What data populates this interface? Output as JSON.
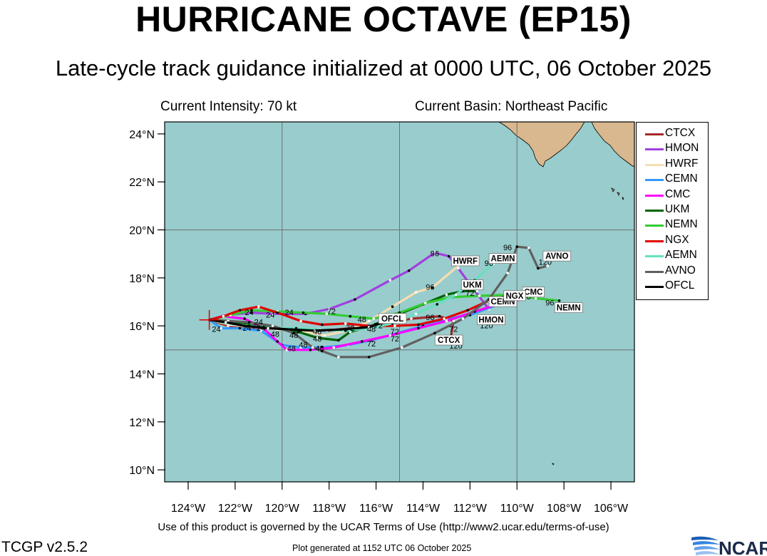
{
  "header": {
    "title": "HURRICANE OCTAVE (EP15)",
    "subtitle": "Late-cycle track guidance initialized at 0000 UTC, 06 October 2025",
    "intensity": "Current Intensity: 70 kt",
    "basin": "Current Basin: Northeast Pacific"
  },
  "footer": {
    "terms": "Use of this product is governed by the UCAR Terms of Use (http://www2.ucar.edu/terms-of-use)",
    "version": "TCGP v2.5.2",
    "generated": "Plot generated at 1152 UTC   06 October 2025",
    "logo_text": "NCAR"
  },
  "map": {
    "ocean_color": "#99cccc",
    "land_color": "#d9b88f",
    "lon_range": [
      -125,
      -105
    ],
    "lat_range": [
      9.5,
      24.5
    ],
    "lon_ticks": [
      {
        "v": -124,
        "label": "124°W"
      },
      {
        "v": -122,
        "label": "122°W"
      },
      {
        "v": -120,
        "label": "120°W"
      },
      {
        "v": -118,
        "label": "118°W"
      },
      {
        "v": -116,
        "label": "116°W"
      },
      {
        "v": -114,
        "label": "114°W"
      },
      {
        "v": -112,
        "label": "112°W"
      },
      {
        "v": -110,
        "label": "110°W"
      },
      {
        "v": -108,
        "label": "108°W"
      },
      {
        "v": -106,
        "label": "106°W"
      }
    ],
    "lat_ticks": [
      {
        "v": 10,
        "label": "10°N"
      },
      {
        "v": 12,
        "label": "12°N"
      },
      {
        "v": 14,
        "label": "14°N"
      },
      {
        "v": 16,
        "label": "16°N"
      },
      {
        "v": 18,
        "label": "18°N"
      },
      {
        "v": 20,
        "label": "20°N"
      },
      {
        "v": 22,
        "label": "22°N"
      },
      {
        "v": 24,
        "label": "24°N"
      }
    ],
    "grid_lon": [
      -125,
      -120,
      -115,
      -110
    ],
    "grid_lat": [
      15,
      20
    ],
    "current_position": {
      "lon": -123.1,
      "lat": 16.25
    }
  },
  "models": [
    {
      "name": "CTCX",
      "color": "#a52a2a",
      "track": [
        [
          -123.1,
          16.25
        ],
        [
          -122.3,
          16.0
        ],
        [
          -121.5,
          15.9
        ],
        [
          -120.5,
          15.9
        ],
        [
          -119.2,
          15.85
        ],
        [
          -118.1,
          15.8
        ],
        [
          -116.2,
          16.0
        ],
        [
          -114.5,
          16.3
        ],
        [
          -113.3,
          16.4
        ],
        [
          -112.7,
          16.2
        ],
        [
          -112.8,
          15.6
        ]
      ],
      "end_label": "CTCX",
      "end_label_pos": [
        -112.9,
        15.35
      ]
    },
    {
      "name": "HMON",
      "color": "#a040e0",
      "track": [
        [
          -123.1,
          16.25
        ],
        [
          -122.4,
          16.45
        ],
        [
          -121.3,
          16.55
        ],
        [
          -120.4,
          16.5
        ],
        [
          -119.0,
          16.5
        ],
        [
          -118.0,
          16.7
        ],
        [
          -116.9,
          17.1
        ],
        [
          -115.4,
          17.9
        ],
        [
          -114.6,
          18.3
        ],
        [
          -113.5,
          19.05
        ],
        [
          -112.9,
          18.9
        ],
        [
          -112.5,
          18.4
        ],
        [
          -111.9,
          17.6
        ],
        [
          -111.2,
          16.7
        ]
      ],
      "end_label": "HMON",
      "end_label_pos": [
        -111.1,
        16.2
      ]
    },
    {
      "name": "HWRF",
      "color": "#f5deb3",
      "track": [
        [
          -123.1,
          16.25
        ],
        [
          -122.2,
          16.05
        ],
        [
          -121.2,
          15.95
        ],
        [
          -120.2,
          15.85
        ],
        [
          -119.2,
          15.8
        ],
        [
          -118.2,
          15.6
        ],
        [
          -117.2,
          15.8
        ],
        [
          -116.3,
          16.2
        ],
        [
          -115.3,
          16.8
        ],
        [
          -114.3,
          17.4
        ],
        [
          -113.6,
          17.6
        ],
        [
          -112.5,
          18.5
        ]
      ],
      "end_label": "HWRF",
      "end_label_pos": [
        -112.2,
        18.65
      ]
    },
    {
      "name": "CEMN",
      "color": "#3399ff",
      "track": [
        [
          -123.1,
          16.25
        ],
        [
          -122.6,
          15.9
        ],
        [
          -121.8,
          15.9
        ],
        [
          -120.9,
          15.8
        ],
        [
          -120.0,
          15.2
        ],
        [
          -119.2,
          15.1
        ],
        [
          -118.3,
          15.1
        ],
        [
          -117.2,
          15.2
        ],
        [
          -116.2,
          15.4
        ],
        [
          -115.1,
          15.7
        ],
        [
          -114.0,
          16.0
        ],
        [
          -113.0,
          16.3
        ],
        [
          -112.0,
          16.45
        ],
        [
          -110.9,
          16.85
        ]
      ],
      "end_label": "CEMN",
      "end_label_pos": [
        -110.6,
        16.95
      ]
    },
    {
      "name": "CMC",
      "color": "#ff00ff",
      "track": [
        [
          -123.1,
          16.25
        ],
        [
          -122.5,
          16.4
        ],
        [
          -121.6,
          16.3
        ],
        [
          -120.8,
          15.9
        ],
        [
          -120.2,
          15.35
        ],
        [
          -119.8,
          15.0
        ],
        [
          -118.8,
          15.0
        ],
        [
          -117.8,
          15.1
        ],
        [
          -116.6,
          15.35
        ],
        [
          -115.4,
          15.6
        ],
        [
          -114.2,
          15.9
        ],
        [
          -113.0,
          16.2
        ],
        [
          -111.8,
          16.6
        ],
        [
          -110.8,
          16.9
        ],
        [
          -109.8,
          17.1
        ]
      ],
      "end_label": "CMC",
      "end_label_pos": [
        -109.3,
        17.35
      ]
    },
    {
      "name": "UKM",
      "color": "#006400",
      "track": [
        [
          -123.1,
          16.25
        ],
        [
          -122.2,
          16.2
        ],
        [
          -121.2,
          16.0
        ],
        [
          -120.3,
          15.9
        ],
        [
          -119.3,
          15.75
        ],
        [
          -118.5,
          15.5
        ],
        [
          -117.6,
          15.4
        ],
        [
          -117.1,
          15.75
        ],
        [
          -116.2,
          16.0
        ],
        [
          -115.0,
          16.5
        ],
        [
          -114.0,
          16.9
        ],
        [
          -113.0,
          17.3
        ],
        [
          -112.3,
          17.45
        ],
        [
          -111.7,
          17.45
        ]
      ],
      "end_label": "UKM",
      "end_label_pos": [
        -111.9,
        17.65
      ]
    },
    {
      "name": "NEMN",
      "color": "#33cc33",
      "track": [
        [
          -123.1,
          16.25
        ],
        [
          -122.2,
          16.45
        ],
        [
          -121.3,
          16.65
        ],
        [
          -120.2,
          16.6
        ],
        [
          -119.1,
          16.55
        ],
        [
          -118.1,
          16.5
        ],
        [
          -117.1,
          16.4
        ],
        [
          -116.1,
          16.3
        ],
        [
          -115.0,
          16.55
        ],
        [
          -113.9,
          16.95
        ],
        [
          -112.8,
          17.2
        ],
        [
          -111.6,
          17.25
        ],
        [
          -110.3,
          17.3
        ],
        [
          -109.2,
          17.15
        ],
        [
          -108.2,
          17.05
        ]
      ],
      "end_label": "NEMN",
      "end_label_pos": [
        -107.8,
        16.7
      ]
    },
    {
      "name": "NGX",
      "color": "#e00000",
      "track": [
        [
          -123.1,
          16.25
        ],
        [
          -122.5,
          16.4
        ],
        [
          -121.8,
          16.65
        ],
        [
          -121.0,
          16.8
        ],
        [
          -120.2,
          16.55
        ],
        [
          -119.2,
          16.2
        ],
        [
          -118.3,
          16.05
        ],
        [
          -117.3,
          16.1
        ],
        [
          -116.3,
          16.0
        ],
        [
          -115.2,
          16.0
        ],
        [
          -114.2,
          16.05
        ],
        [
          -113.1,
          16.3
        ],
        [
          -112.1,
          16.65
        ],
        [
          -111.2,
          17.05
        ],
        [
          -110.6,
          17.2
        ]
      ],
      "end_label": "NGX",
      "end_label_pos": [
        -110.1,
        17.2
      ]
    },
    {
      "name": "AEMN",
      "color": "#66e0c0",
      "track": [
        [
          -123.1,
          16.25
        ],
        [
          -122.3,
          16.1
        ],
        [
          -121.4,
          16.0
        ],
        [
          -120.5,
          15.9
        ],
        [
          -119.4,
          15.9
        ],
        [
          -118.4,
          15.85
        ],
        [
          -117.3,
          15.8
        ],
        [
          -116.3,
          15.9
        ],
        [
          -115.3,
          16.1
        ],
        [
          -114.3,
          16.5
        ],
        [
          -113.4,
          16.9
        ],
        [
          -112.6,
          17.3
        ],
        [
          -111.8,
          17.9
        ],
        [
          -111.0,
          18.6
        ]
      ],
      "end_label": "AEMN",
      "end_label_pos": [
        -110.6,
        18.75
      ]
    },
    {
      "name": "AVNO",
      "color": "#606060",
      "track": [
        [
          -123.1,
          16.25
        ],
        [
          -122.3,
          16.2
        ],
        [
          -121.4,
          16.15
        ],
        [
          -120.4,
          16.0
        ],
        [
          -119.5,
          15.7
        ],
        [
          -118.7,
          15.1
        ],
        [
          -118.3,
          14.95
        ],
        [
          -117.6,
          14.7
        ],
        [
          -116.3,
          14.7
        ],
        [
          -114.9,
          15.1
        ],
        [
          -113.5,
          15.7
        ],
        [
          -112.3,
          16.3
        ],
        [
          -111.2,
          17.1
        ],
        [
          -110.4,
          18.2
        ],
        [
          -110.0,
          19.3
        ],
        [
          -109.5,
          19.25
        ],
        [
          -109.1,
          18.4
        ],
        [
          -108.7,
          18.5
        ]
      ],
      "end_label": "AVNO",
      "end_label_pos": [
        -108.3,
        18.85
      ]
    },
    {
      "name": "OFCL",
      "color": "#000000",
      "track": [
        [
          -123.1,
          16.25
        ],
        [
          -122.4,
          16.15
        ],
        [
          -121.6,
          16.0
        ],
        [
          -120.6,
          15.9
        ],
        [
          -119.6,
          15.85
        ],
        [
          -118.6,
          15.8
        ],
        [
          -117.5,
          15.85
        ],
        [
          -116.3,
          15.95
        ],
        [
          -115.4,
          16.25
        ]
      ],
      "end_label": "OFCL",
      "end_label_pos": [
        -115.3,
        16.25
      ]
    }
  ],
  "hour_labels": [
    {
      "t": "24",
      "lon": -121.4,
      "lat": 16.45
    },
    {
      "t": "24",
      "lon": -120.5,
      "lat": 16.35
    },
    {
      "t": "24",
      "lon": -119.7,
      "lat": 16.45
    },
    {
      "t": "24",
      "lon": -121.0,
      "lat": 16.05
    },
    {
      "t": "24",
      "lon": -120.9,
      "lat": 15.8
    },
    {
      "t": "24",
      "lon": -121.5,
      "lat": 15.8
    },
    {
      "t": "24",
      "lon": -122.8,
      "lat": 15.75
    },
    {
      "t": "48",
      "lon": -120.3,
      "lat": 15.55
    },
    {
      "t": "48",
      "lon": -119.5,
      "lat": 15.5
    },
    {
      "t": "48",
      "lon": -119.1,
      "lat": 15.1
    },
    {
      "t": "48",
      "lon": -119.6,
      "lat": 14.95
    },
    {
      "t": "48",
      "lon": -118.5,
      "lat": 15.35
    },
    {
      "t": "48",
      "lon": -118.5,
      "lat": 15.65
    },
    {
      "t": "48",
      "lon": -118.4,
      "lat": 14.95
    },
    {
      "t": "48",
      "lon": -116.6,
      "lat": 16.15
    },
    {
      "t": "48",
      "lon": -116.2,
      "lat": 15.75
    },
    {
      "t": "72",
      "lon": -117.9,
      "lat": 16.5
    },
    {
      "t": "72",
      "lon": -117.1,
      "lat": 15.8
    },
    {
      "t": "72",
      "lon": -115.9,
      "lat": 15.9
    },
    {
      "t": "72",
      "lon": -116.2,
      "lat": 15.15
    },
    {
      "t": "72",
      "lon": -115.2,
      "lat": 15.35
    },
    {
      "t": "72",
      "lon": -115.2,
      "lat": 15.65
    },
    {
      "t": "72",
      "lon": -114.9,
      "lat": 16.25
    },
    {
      "t": "72",
      "lon": -112.7,
      "lat": 15.75
    },
    {
      "t": "72",
      "lon": -112.0,
      "lat": 17.25
    },
    {
      "t": "96",
      "lon": -113.7,
      "lat": 16.25
    },
    {
      "t": "96",
      "lon": -113.7,
      "lat": 17.5
    },
    {
      "t": "96",
      "lon": -113.5,
      "lat": 18.9
    },
    {
      "t": "96",
      "lon": -111.2,
      "lat": 18.5
    },
    {
      "t": "96",
      "lon": -110.4,
      "lat": 19.15
    },
    {
      "t": "96",
      "lon": -109.6,
      "lat": 17.1
    },
    {
      "t": "96",
      "lon": -108.6,
      "lat": 16.85
    },
    {
      "t": "120",
      "lon": -112.6,
      "lat": 15.05
    },
    {
      "t": "120",
      "lon": -111.3,
      "lat": 15.9
    },
    {
      "t": "120",
      "lon": -108.8,
      "lat": 18.55
    }
  ]
}
